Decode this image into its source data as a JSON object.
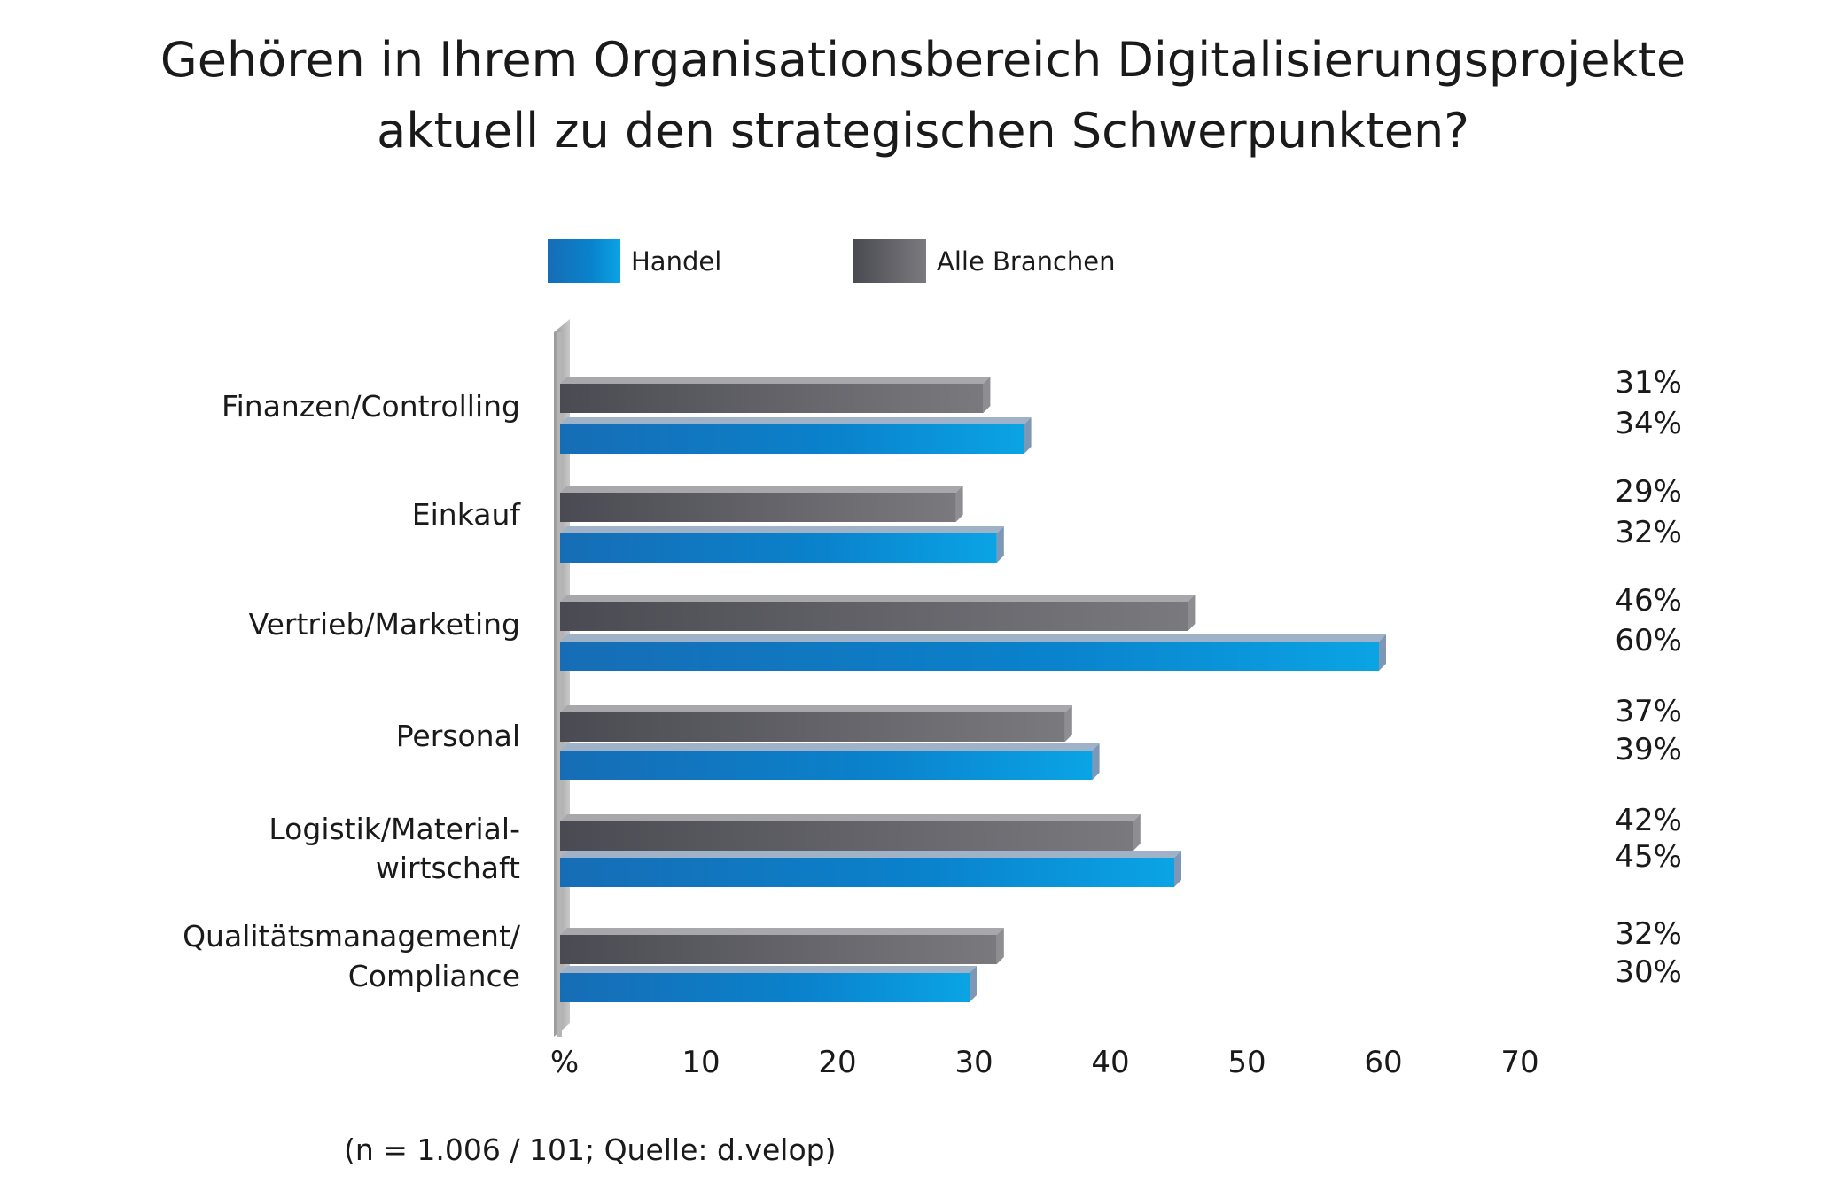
{
  "chart_data": {
    "type": "bar",
    "orientation": "horizontal",
    "title": "Gehören in Ihrem Organisationsbereich Digitalisierungsprojekte aktuell zu den strategischen Schwerpunkten?",
    "categories": [
      [
        "Finanzen/Controlling"
      ],
      [
        "Einkauf"
      ],
      [
        "Vertrieb/Marketing"
      ],
      [
        "Personal"
      ],
      [
        "Logistik/Material-",
        "wirtschaft"
      ],
      [
        "Qualitätsmanagement/",
        "Compliance"
      ]
    ],
    "series": [
      {
        "name": "Alle Branchen",
        "values": [
          31,
          29,
          46,
          37,
          42,
          32
        ],
        "labels": [
          "31%",
          "29%",
          "46%",
          "37%",
          "42%",
          "32%"
        ],
        "color": "#5a5a62"
      },
      {
        "name": "Handel",
        "values": [
          34,
          32,
          60,
          39,
          45,
          30
        ],
        "labels": [
          "34%",
          "32%",
          "60%",
          "39%",
          "45%",
          "30%"
        ],
        "color": "#1a7cc8"
      }
    ],
    "xticks": [
      "%",
      "10",
      "20",
      "30",
      "40",
      "50",
      "60",
      "70"
    ],
    "xlim": [
      0,
      70
    ],
    "legend": {
      "position": "top",
      "items": [
        {
          "label": "Handel",
          "color": "#1a7cc8"
        },
        {
          "label": "Alle Branchen",
          "color": "#5a5a62"
        }
      ]
    },
    "grid": false,
    "source": "(n = 1.006 / 101; Quelle: d.velop)"
  }
}
